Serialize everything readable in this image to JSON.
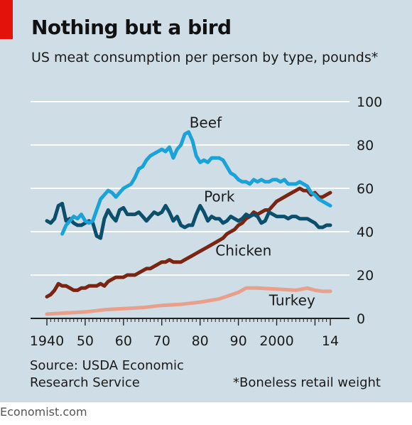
{
  "title": "Nothing but a bird",
  "subtitle": "US meat consumption per person by type, pounds*",
  "source_line1": "Source: USDA Economic",
  "source_line2": "Research Service",
  "footnote": "*Boneless retail weight",
  "brand": "Economist.com",
  "colors": {
    "background": "#cfdde6",
    "accent_red": "#e3120b",
    "beef": "#1aa3d9",
    "pork": "#0b4f6c",
    "chicken": "#7a2412",
    "turkey": "#e8a08a",
    "gridline": "#ffffff"
  },
  "chart_data": {
    "type": "line",
    "title": "Nothing but a bird",
    "subtitle": "US meat consumption per person by type, pounds*",
    "xlim": [
      1940,
      2014
    ],
    "ylim": [
      0,
      100
    ],
    "yticks": [
      0,
      20,
      40,
      60,
      80,
      100
    ],
    "ytick_labels": [
      "0",
      "20",
      "40",
      "60",
      "80",
      "100"
    ],
    "xticks": [
      1940,
      1950,
      1960,
      1970,
      1980,
      1990,
      2000,
      2014
    ],
    "xtick_labels": [
      "1940",
      "50",
      "60",
      "70",
      "80",
      "90",
      "2000",
      "14"
    ],
    "grid": "horizontal",
    "series": [
      {
        "name": "Beef",
        "color": "#1aa3d9",
        "x": [
          1944,
          1945,
          1946,
          1947,
          1948,
          1949,
          1950,
          1951,
          1952,
          1953,
          1954,
          1955,
          1956,
          1957,
          1958,
          1959,
          1960,
          1961,
          1962,
          1963,
          1964,
          1965,
          1966,
          1967,
          1968,
          1969,
          1970,
          1971,
          1972,
          1973,
          1974,
          1975,
          1976,
          1977,
          1978,
          1979,
          1980,
          1981,
          1982,
          1983,
          1984,
          1985,
          1986,
          1987,
          1988,
          1989,
          1990,
          1991,
          1992,
          1993,
          1994,
          1995,
          1996,
          1997,
          1998,
          1999,
          2000,
          2001,
          2002,
          2003,
          2004,
          2005,
          2006,
          2007,
          2008,
          2009,
          2010,
          2011,
          2012,
          2013,
          2014
        ],
        "y": [
          39,
          43,
          45,
          47,
          46,
          48,
          45,
          44,
          45,
          50,
          55,
          57,
          59,
          58,
          56,
          58,
          60,
          61,
          62,
          65,
          69,
          70,
          73,
          75,
          76,
          77,
          78,
          77,
          79,
          74,
          78,
          80,
          85,
          86,
          82,
          75,
          72,
          73,
          72,
          74,
          74,
          74,
          73,
          70,
          67,
          66,
          64,
          63,
          63,
          62,
          64,
          63,
          64,
          63,
          63,
          64,
          64,
          63,
          64,
          62,
          62,
          62,
          63,
          62,
          61,
          58,
          57,
          55,
          54,
          53,
          52
        ]
      },
      {
        "name": "Pork",
        "color": "#0b4f6c",
        "x": [
          1940,
          1941,
          1942,
          1943,
          1944,
          1945,
          1946,
          1947,
          1948,
          1949,
          1950,
          1951,
          1952,
          1953,
          1954,
          1955,
          1956,
          1957,
          1958,
          1959,
          1960,
          1961,
          1962,
          1963,
          1964,
          1965,
          1966,
          1967,
          1968,
          1969,
          1970,
          1971,
          1972,
          1973,
          1974,
          1975,
          1976,
          1977,
          1978,
          1979,
          1980,
          1981,
          1982,
          1983,
          1984,
          1985,
          1986,
          1987,
          1988,
          1989,
          1990,
          1991,
          1992,
          1993,
          1994,
          1995,
          1996,
          1997,
          1998,
          1999,
          2000,
          2001,
          2002,
          2003,
          2004,
          2005,
          2006,
          2007,
          2008,
          2009,
          2010,
          2011,
          2012,
          2013,
          2014
        ],
        "y": [
          45,
          44,
          46,
          52,
          53,
          45,
          46,
          44,
          43,
          43,
          44,
          45,
          44,
          38,
          37,
          46,
          50,
          47,
          45,
          50,
          51,
          48,
          48,
          48,
          49,
          47,
          45,
          47,
          49,
          48,
          49,
          52,
          49,
          45,
          47,
          43,
          42,
          43,
          43,
          48,
          52,
          49,
          45,
          47,
          46,
          46,
          44,
          45,
          47,
          46,
          45,
          46,
          48,
          47,
          48,
          47,
          44,
          45,
          49,
          48,
          47,
          47,
          47,
          46,
          47,
          47,
          46,
          46,
          46,
          45,
          44,
          42,
          42,
          43,
          43
        ]
      },
      {
        "name": "Chicken",
        "color": "#7a2412",
        "x": [
          1940,
          1941,
          1942,
          1943,
          1944,
          1945,
          1946,
          1947,
          1948,
          1949,
          1950,
          1951,
          1952,
          1953,
          1954,
          1955,
          1956,
          1957,
          1958,
          1959,
          1960,
          1961,
          1962,
          1963,
          1964,
          1965,
          1966,
          1967,
          1968,
          1969,
          1970,
          1971,
          1972,
          1973,
          1974,
          1975,
          1976,
          1977,
          1978,
          1979,
          1980,
          1981,
          1982,
          1983,
          1984,
          1985,
          1986,
          1987,
          1988,
          1989,
          1990,
          1991,
          1992,
          1993,
          1994,
          1995,
          1996,
          1997,
          1998,
          1999,
          2000,
          2001,
          2002,
          2003,
          2004,
          2005,
          2006,
          2007,
          2008,
          2009,
          2010,
          2011,
          2012,
          2013,
          2014
        ],
        "y": [
          10,
          11,
          13,
          16,
          15,
          15,
          14,
          13,
          13,
          14,
          14,
          15,
          15,
          15,
          16,
          15,
          17,
          18,
          19,
          19,
          19,
          20,
          20,
          20,
          21,
          22,
          23,
          23,
          24,
          25,
          26,
          26,
          27,
          26,
          26,
          26,
          27,
          28,
          29,
          30,
          31,
          32,
          33,
          34,
          35,
          36,
          37,
          39,
          40,
          41,
          43,
          44,
          46,
          47,
          49,
          48,
          49,
          50,
          50,
          52,
          54,
          55,
          56,
          57,
          58,
          59,
          60,
          59,
          59,
          57,
          58,
          56,
          56,
          57,
          58
        ]
      },
      {
        "name": "Turkey",
        "color": "#e8a08a",
        "x": [
          1940,
          1945,
          1950,
          1955,
          1960,
          1965,
          1970,
          1975,
          1980,
          1985,
          1990,
          1992,
          1995,
          2000,
          2005,
          2008,
          2010,
          2012,
          2014
        ],
        "y": [
          2,
          2.5,
          3,
          4,
          4.5,
          5,
          6,
          6.5,
          7.5,
          9,
          12,
          14,
          14,
          13.5,
          13,
          14,
          13,
          12.5,
          12.5
        ]
      }
    ]
  }
}
